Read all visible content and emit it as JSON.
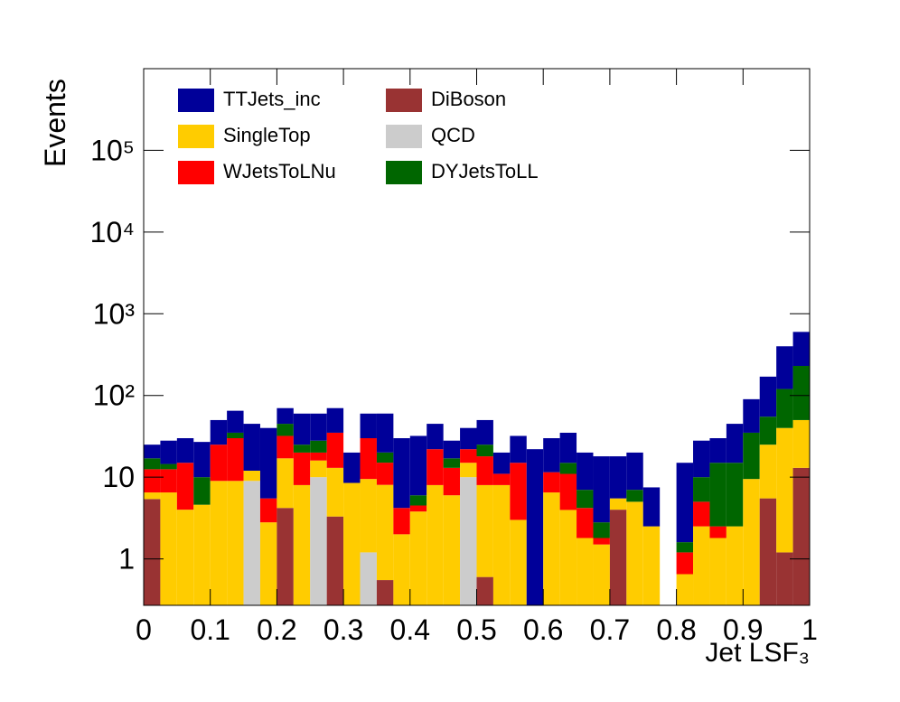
{
  "chart_data": {
    "type": "stacked-histogram",
    "xlabel": "Jet LSF₃",
    "ylabel": "Events",
    "bins": [
      0,
      0.025,
      0.05,
      0.075,
      0.1,
      0.125,
      0.15,
      0.175,
      0.2,
      0.225,
      0.25,
      0.275,
      0.3,
      0.325,
      0.35,
      0.375,
      0.4,
      0.425,
      0.45,
      0.475,
      0.5,
      0.525,
      0.55,
      0.575,
      0.6,
      0.625,
      0.65,
      0.675,
      0.7,
      0.725,
      0.75,
      0.775,
      0.8,
      0.825,
      0.85,
      0.875,
      0.9,
      0.925,
      0.95,
      0.975,
      1
    ],
    "xlim": [
      0,
      1
    ],
    "xticks": [
      0,
      0.1,
      0.2,
      0.3,
      0.4,
      0.5,
      0.6,
      0.7,
      0.8,
      0.9,
      1
    ],
    "ylim": [
      0.27,
      1000000
    ],
    "yticks": [
      1,
      10,
      {
        "value": 100,
        "label": "10²"
      },
      {
        "value": 1000,
        "label": "10³"
      },
      {
        "value": 10000,
        "label": "10⁴"
      },
      {
        "value": 100000,
        "label": "10⁵"
      }
    ],
    "log_y": true,
    "series": [
      {
        "name": "TTJets_inc",
        "color": "#000099",
        "values": [
          8,
          13.5,
          15,
          17,
          25,
          30,
          33,
          34.5,
          25,
          35,
          32,
          35,
          11.5,
          30,
          40,
          25.8,
          26,
          23,
          11,
          18,
          25,
          9,
          17,
          22,
          18.5,
          20,
          13,
          15.2,
          12.5,
          13,
          5,
          0,
          13.4,
          18,
          15,
          30,
          55,
          115,
          280,
          370
        ]
      },
      {
        "name": "SingleTop",
        "color": "#ffcc00",
        "values": [
          1.1,
          6.5,
          4,
          4.6,
          9,
          9,
          3,
          2.8,
          12.8,
          8,
          6,
          9.7,
          8.5,
          8.3,
          7.5,
          2,
          3.8,
          8,
          6,
          5,
          7.4,
          8,
          3,
          0,
          6.5,
          3.7,
          1.8,
          1.5,
          1.5,
          5,
          2.5,
          0,
          0.65,
          2.5,
          1.8,
          2.5,
          9.5,
          19.5,
          38.8,
          37
        ]
      },
      {
        "name": "WJetsToLNu",
        "color": "#ff0000",
        "values": [
          6,
          6,
          11,
          0,
          16,
          21,
          0,
          2.7,
          15,
          12,
          4,
          22,
          0,
          20.5,
          7,
          2.2,
          0.7,
          14,
          7,
          7,
          10,
          3,
          12,
          0,
          5,
          7,
          2.4,
          0.3,
          0,
          0,
          0,
          0,
          0.55,
          2.5,
          0.7,
          0,
          0,
          0,
          0,
          0
        ]
      },
      {
        "name": "DiBoson",
        "color": "#993333",
        "values": [
          5.4,
          0,
          0,
          0,
          0,
          0,
          0,
          0,
          4.2,
          0,
          0,
          3.3,
          0,
          0,
          0.55,
          0,
          0,
          0,
          0,
          0,
          0.6,
          0,
          0,
          0,
          0,
          0.27,
          0,
          0,
          4,
          0,
          0,
          0,
          0,
          0,
          0,
          0,
          0,
          5.5,
          1.2,
          13
        ]
      },
      {
        "name": "QCD",
        "color": "#cccccc",
        "values": [
          0,
          0,
          0,
          0,
          0,
          0,
          9,
          0,
          0,
          0,
          10,
          0,
          0,
          1.2,
          0,
          0,
          0,
          0,
          0,
          10,
          0,
          0,
          0,
          0,
          0,
          0,
          0,
          0,
          0,
          0,
          0,
          0,
          0,
          0,
          0,
          0,
          0,
          0,
          0,
          0
        ]
      },
      {
        "name": "DYJetsToLL",
        "color": "#006600",
        "values": [
          4.5,
          2,
          0,
          5.4,
          0,
          5,
          0,
          0,
          13,
          5,
          8,
          0,
          0,
          0,
          5,
          0,
          1.5,
          0,
          4,
          0,
          7,
          0,
          0,
          0,
          0,
          4,
          2.8,
          1,
          0,
          2,
          0,
          0,
          0.4,
          5,
          12.5,
          12.5,
          25.5,
          30,
          80,
          180
        ]
      }
    ]
  }
}
